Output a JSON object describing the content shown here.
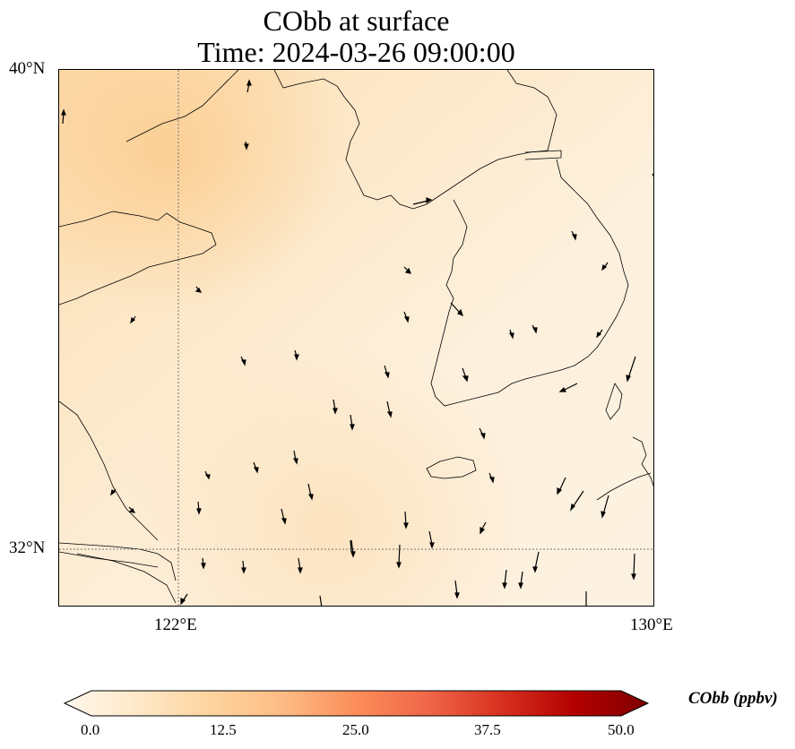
{
  "title": {
    "line1": "CObb at surface",
    "line2": "Time: 2024-03-26 09:00:00"
  },
  "map": {
    "lat_labels": [
      "40°N",
      "32°N"
    ],
    "lon_labels": [
      "122°E",
      "130°E"
    ],
    "gridline_style": "dotted",
    "field_colormap": "OrRd",
    "field_background": "#fdf0dc",
    "coastline_color": "#000000",
    "vector_color": "#000000"
  },
  "colorbar": {
    "title": "CObb (ppbv)",
    "tick_labels": [
      "0.0",
      "12.5",
      "25.0",
      "37.5",
      "50.0"
    ],
    "range": [
      0.0,
      50.0
    ],
    "extend": "both",
    "colors": [
      "#fff7ec",
      "#fee8c8",
      "#fdd49e",
      "#fdbb84",
      "#fc8d59",
      "#ef6548",
      "#d7301f",
      "#b30000",
      "#7f0000"
    ]
  }
}
